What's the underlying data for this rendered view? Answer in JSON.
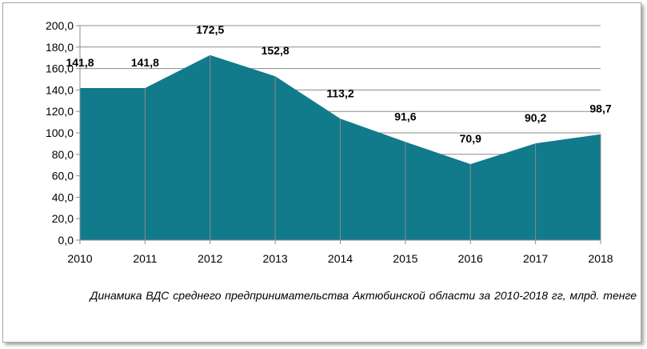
{
  "chart_data": {
    "type": "area",
    "x": [
      "2010",
      "2011",
      "2012",
      "2013",
      "2014",
      "2015",
      "2016",
      "2017",
      "2018"
    ],
    "values": [
      141.8,
      141.8,
      172.5,
      152.8,
      113.2,
      91.6,
      70.9,
      90.2,
      98.7
    ],
    "data_labels": [
      "141,8",
      "141,8",
      "172,5",
      "152,8",
      "113,2",
      "91,6",
      "70,9",
      "90,2",
      "98,7"
    ],
    "y_ticks": [
      "0,0",
      "20,0",
      "40,0",
      "60,0",
      "80,0",
      "100,0",
      "120,0",
      "140,0",
      "160,0",
      "180,0",
      "200,0"
    ],
    "ylim": [
      0,
      200
    ],
    "y_step": 20,
    "grid": true,
    "legend": "none",
    "fill_color": "#117a8b",
    "title": "",
    "xlabel": "",
    "ylabel": ""
  },
  "caption": "Динамика ВДС среднего предпринимательства Актюбинской области за 2010-2018 гг, млрд. тенге"
}
